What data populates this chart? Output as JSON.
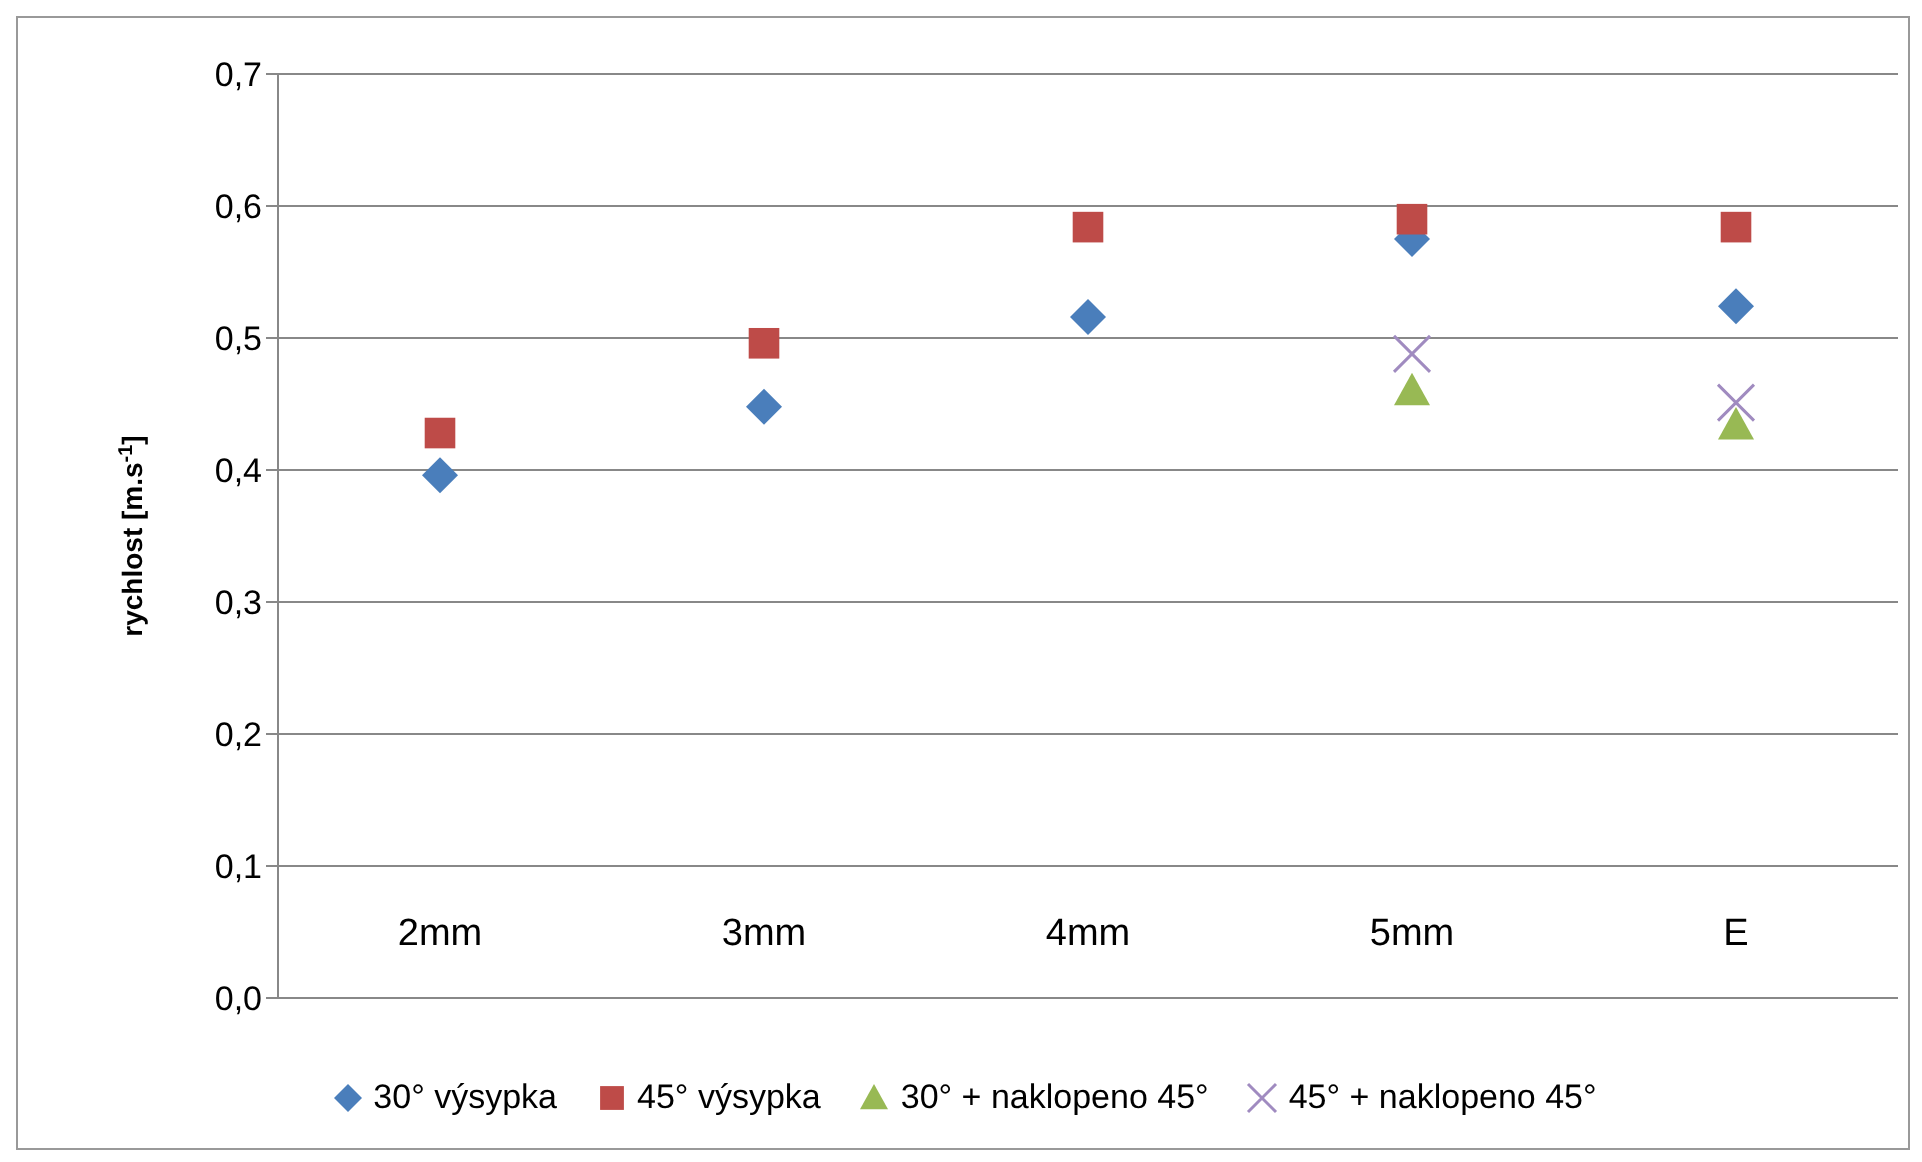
{
  "chart_data": {
    "type": "scatter",
    "ylabel": "rychlost [m.s$^{-1}$]",
    "categories": [
      "2mm",
      "3mm",
      "4mm",
      "5mm",
      "E"
    ],
    "ylim": [
      0,
      0.7
    ],
    "yticks": [
      {
        "value": 0,
        "label": "0,0"
      },
      {
        "value": 0.1,
        "label": "0,1"
      },
      {
        "value": 0.2,
        "label": "0,2"
      },
      {
        "value": 0.3,
        "label": "0,3"
      },
      {
        "value": 0.4,
        "label": "0,4"
      },
      {
        "value": 0.5,
        "label": "0,5"
      },
      {
        "value": 0.6,
        "label": "0,6"
      },
      {
        "value": 0.7,
        "label": "0,7"
      }
    ],
    "grid": "y",
    "legend": "bottom",
    "series": [
      {
        "name": "30° výsypka",
        "color": "#4a7ebb",
        "marker": "diamond",
        "values": [
          0.396,
          0.448,
          0.516,
          0.575,
          0.524
        ]
      },
      {
        "name": "45° výsypka",
        "color": "#be4b48",
        "marker": "square",
        "values": [
          0.428,
          0.496,
          0.584,
          0.59,
          0.584
        ]
      },
      {
        "name": "30° + naklopeno 45°",
        "color": "#98b954",
        "marker": "triangle",
        "values": [
          null,
          null,
          null,
          0.46,
          0.434
        ]
      },
      {
        "name": "45° + naklopeno 45°",
        "color": "#a08bc0",
        "marker": "cross",
        "values": [
          null,
          null,
          null,
          0.488,
          0.451
        ]
      }
    ]
  }
}
